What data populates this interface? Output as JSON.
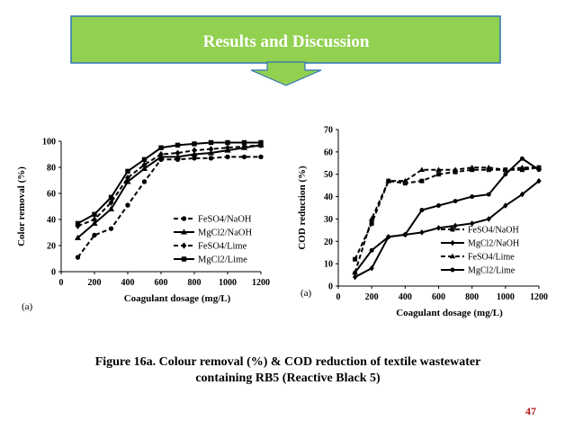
{
  "slide": {
    "title": "Results and Discussion",
    "caption_line1": "Figure 16a. Colour removal (%) & COD reduction of textile wastewater",
    "caption_line2": "containing RB5 (Reactive Black 5)",
    "page_number": "47",
    "colors": {
      "banner_fill": "#92d050",
      "banner_border": "#2e75b6",
      "arrow_fill": "#92d050",
      "page_number": "#b01818"
    }
  },
  "chart_data": [
    {
      "type": "line",
      "panel_label": "(a)",
      "xlabel": "Coagulant dosage (mg/L)",
      "ylabel": "Color removal (%)",
      "xlim": [
        0,
        1200
      ],
      "ylim": [
        0,
        100
      ],
      "xticks": [
        0,
        200,
        400,
        600,
        800,
        1000,
        1200
      ],
      "yticks": [
        0,
        20,
        40,
        60,
        80,
        100
      ],
      "legend_position": "right",
      "x": [
        100,
        200,
        300,
        400,
        500,
        600,
        700,
        800,
        900,
        1000,
        1100,
        1200
      ],
      "series": [
        {
          "name": "FeSO4/NaOH",
          "line": "dashed",
          "marker": "circle",
          "values": [
            11,
            28,
            33,
            51,
            69,
            86,
            86,
            87,
            87,
            88,
            88,
            88
          ]
        },
        {
          "name": "MgCl2/NaOH",
          "line": "solid",
          "marker": "triangle",
          "values": [
            26,
            37,
            48,
            69,
            79,
            88,
            88,
            90,
            91,
            93,
            95,
            97
          ]
        },
        {
          "name": "FeSO4/Lime",
          "line": "dashed",
          "marker": "diamond",
          "values": [
            35,
            40,
            53,
            72,
            82,
            90,
            91,
            93,
            94,
            95,
            96,
            97
          ]
        },
        {
          "name": "MgCl2/Lime",
          "line": "solid",
          "marker": "square",
          "values": [
            37,
            44,
            57,
            77,
            86,
            95,
            97,
            98,
            99,
            99,
            99,
            99
          ]
        }
      ]
    },
    {
      "type": "line",
      "panel_label": "(a)",
      "xlabel": "Coagulant dosage (mg/L)",
      "ylabel": "COD reduction (%)",
      "xlim": [
        0,
        1200
      ],
      "ylim": [
        0,
        70
      ],
      "xticks": [
        0,
        200,
        400,
        600,
        800,
        1000,
        1200
      ],
      "yticks": [
        0,
        10,
        20,
        30,
        40,
        50,
        60,
        70
      ],
      "legend_position": "bottom-right",
      "x": [
        100,
        200,
        300,
        400,
        500,
        600,
        700,
        800,
        900,
        1000,
        1100,
        1200
      ],
      "series": [
        {
          "name": "FeSO4/NaOH",
          "line": "dashed",
          "marker": "square",
          "values": [
            12,
            28,
            47,
            46,
            47,
            50,
            51,
            52,
            52,
            52,
            52,
            53
          ]
        },
        {
          "name": "MgCl2/NaOH",
          "line": "solid",
          "marker": "diamond",
          "values": [
            4,
            8,
            22,
            23,
            24,
            26,
            27,
            28,
            30,
            36,
            41,
            47
          ]
        },
        {
          "name": "FeSO4/Lime",
          "line": "dashed",
          "marker": "triangle",
          "values": [
            6,
            30,
            47,
            47,
            52,
            52,
            52,
            53,
            53,
            52,
            53,
            53
          ]
        },
        {
          "name": "MgCl2/Lime",
          "line": "solid",
          "marker": "circle",
          "values": [
            6,
            16,
            22,
            23,
            34,
            36,
            38,
            40,
            41,
            50,
            57,
            52
          ]
        }
      ]
    }
  ]
}
